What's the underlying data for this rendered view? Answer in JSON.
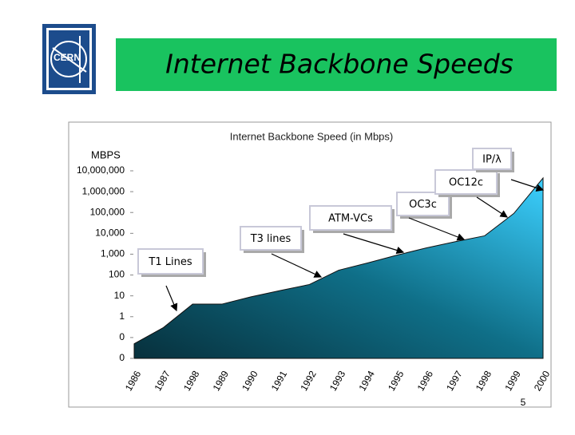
{
  "logo": {
    "text": "CERN"
  },
  "slide_title": "Internet Backbone Speeds",
  "page_number": "5",
  "chart_data": {
    "type": "area",
    "title": "Internet Backbone Speed (in Mbps)",
    "y_label": "MBPS",
    "categories": [
      "1986",
      "1987",
      "1998",
      "1989",
      "1990",
      "1991",
      "1992",
      "1993",
      "1994",
      "1995",
      "1996",
      "1997",
      "1998",
      "1999",
      "2000"
    ],
    "values": [
      0.05,
      0.3,
      4,
      4,
      9,
      18,
      35,
      170,
      380,
      900,
      2000,
      4000,
      7600,
      90000,
      4500000
    ],
    "log_scale": true,
    "ylim": [
      0.01,
      10000000
    ],
    "yticks": [
      {
        "value": 0.01,
        "label": "0"
      },
      {
        "value": 0.1,
        "label": "0"
      },
      1,
      10,
      100,
      {
        "value": 1000,
        "label": "1,000"
      },
      {
        "value": 10000,
        "label": "10,000"
      },
      {
        "value": 100000,
        "label": "100,000"
      },
      {
        "value": 1000000,
        "label": "1,000,000"
      },
      {
        "value": 10000000,
        "label": "10,000,000"
      }
    ],
    "annotations": [
      "T1 Lines",
      "T3 lines",
      "ATM-VCs",
      "OC3c",
      "OC12c",
      "IP/λ"
    ]
  }
}
